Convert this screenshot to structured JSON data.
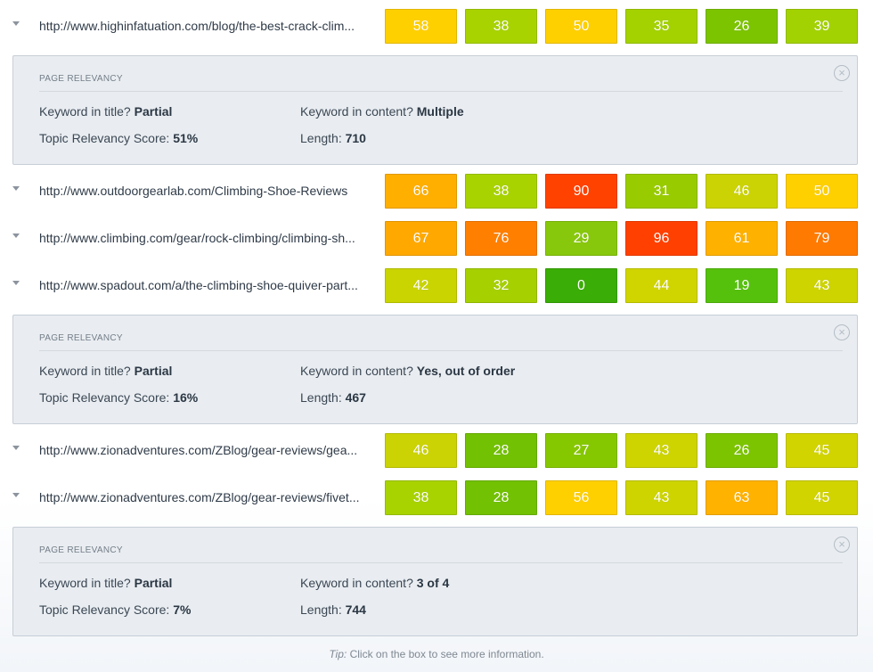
{
  "rows": [
    {
      "url": "http://www.highinfatuation.com/blog/the-best-crack-clim...",
      "scores": [
        58,
        38,
        50,
        35,
        26,
        39
      ]
    },
    {
      "url": "http://www.outdoorgearlab.com/Climbing-Shoe-Reviews",
      "scores": [
        66,
        38,
        90,
        31,
        46,
        50
      ]
    },
    {
      "url": "http://www.climbing.com/gear/rock-climbing/climbing-sh...",
      "scores": [
        67,
        76,
        29,
        96,
        61,
        79
      ]
    },
    {
      "url": "http://www.spadout.com/a/the-climbing-shoe-quiver-part...",
      "scores": [
        42,
        32,
        0,
        44,
        19,
        43
      ]
    },
    {
      "url": "http://www.zionadventures.com/ZBlog/gear-reviews/gea...",
      "scores": [
        46,
        28,
        27,
        43,
        26,
        45
      ]
    },
    {
      "url": "http://www.zionadventures.com/ZBlog/gear-reviews/fivet...",
      "scores": [
        38,
        28,
        56,
        43,
        63,
        45
      ]
    }
  ],
  "score_colors": {
    "0": "#3aad06",
    "19": "#56c10d",
    "26": "#7cc400",
    "27": "#86c800",
    "28": "#72c102",
    "29": "#88c80c",
    "31": "#99cc00",
    "32": "#a6d000",
    "35": "#a4d200",
    "38": "#a8d300",
    "39": "#a3d202",
    "42": "#c9d400",
    "43": "#cdd400",
    "44": "#d0d500",
    "45": "#d2d400",
    "46": "#cbd304",
    "50": "#ffd000",
    "56": "#ffd000",
    "58": "#ffd000",
    "61": "#ffb100",
    "63": "#ffb200",
    "66": "#ffaf00",
    "67": "#ffa900",
    "76": "#ff7f00",
    "79": "#ff7a00",
    "90": "#ff4200",
    "96": "#ff4000"
  },
  "panels": [
    {
      "title": "PAGE RELEVANCY",
      "kw_title_label": "Keyword in title?",
      "kw_title_value": "Partial",
      "kw_content_label": "Keyword in content?",
      "kw_content_value": "Multiple",
      "topic_label": "Topic Relevancy Score:",
      "topic_value": "51%",
      "length_label": "Length:",
      "length_value": "710",
      "close_icon": "×"
    },
    {
      "title": "PAGE RELEVANCY",
      "kw_title_label": "Keyword in title?",
      "kw_title_value": "Partial",
      "kw_content_label": "Keyword in content?",
      "kw_content_value": "Yes, out of order",
      "topic_label": "Topic Relevancy Score:",
      "topic_value": "16%",
      "length_label": "Length:",
      "length_value": "467",
      "close_icon": "×"
    },
    {
      "title": "PAGE RELEVANCY",
      "kw_title_label": "Keyword in title?",
      "kw_title_value": "Partial",
      "kw_content_label": "Keyword in content?",
      "kw_content_value": "3 of 4",
      "topic_label": "Topic Relevancy Score:",
      "topic_value": "7%",
      "length_label": "Length:",
      "length_value": "744",
      "close_icon": "×"
    }
  ],
  "tip": {
    "label": "Tip:",
    "text": " Click on the box to see more information."
  }
}
